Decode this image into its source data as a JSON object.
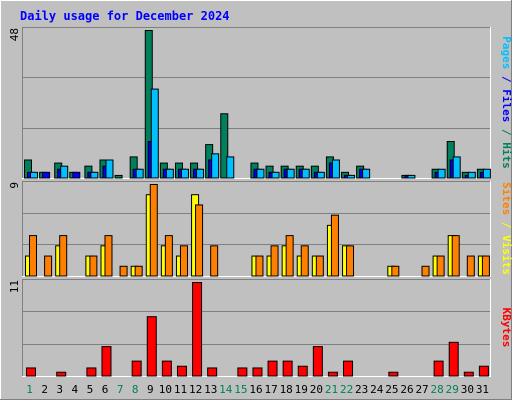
{
  "title": "Daily usage for December 2024",
  "colors": {
    "background": "#c0c0c0",
    "frame_dark": "#808080",
    "frame_light": "#ffffff",
    "gridline": "#808080",
    "title_text": "#0000ff",
    "hits": "#00805c",
    "files": "#0000ff",
    "pages": "#00c0ff",
    "visits": "#ff8000",
    "sites": "#ffff00",
    "kbytes": "#ff0000",
    "day_weekday": "#0000ff",
    "day_weekend": "#00805c"
  },
  "chart_data": [
    {
      "type": "bar",
      "panel": "hits-files-pages",
      "ylabel_max": "48",
      "ylim": [
        0,
        48
      ],
      "categories": [
        "1",
        "2",
        "3",
        "4",
        "5",
        "6",
        "7",
        "8",
        "9",
        "10",
        "11",
        "12",
        "13",
        "14",
        "15",
        "16",
        "17",
        "18",
        "19",
        "20",
        "21",
        "22",
        "23",
        "24",
        "25",
        "26",
        "27",
        "28",
        "29",
        "30",
        "31"
      ],
      "legend": {
        "pages": "Pages",
        "files": "Files",
        "hits": "Hits",
        "sep": " / "
      },
      "series": [
        {
          "name": "Hits",
          "values": [
            6,
            2,
            5,
            2,
            4,
            6,
            1,
            7,
            48,
            5,
            5,
            5,
            11,
            21,
            0,
            5,
            4,
            4,
            4,
            4,
            7,
            2,
            4,
            0,
            0,
            1,
            0,
            3,
            12,
            2,
            3
          ]
        },
        {
          "name": "Files",
          "values": [
            2,
            2,
            3,
            2,
            2,
            4,
            0,
            3,
            12,
            3,
            3,
            3,
            6,
            0,
            0,
            3,
            2,
            3,
            3,
            2,
            5,
            1,
            3,
            0,
            0,
            1,
            0,
            2,
            6,
            1,
            2
          ]
        },
        {
          "name": "Pages",
          "values": [
            2,
            0,
            4,
            0,
            2,
            6,
            0,
            3,
            29,
            3,
            3,
            3,
            8,
            7,
            0,
            3,
            2,
            3,
            3,
            2,
            6,
            1,
            3,
            0,
            0,
            1,
            0,
            3,
            7,
            2,
            3
          ]
        }
      ]
    },
    {
      "type": "bar",
      "panel": "visits-sites",
      "ylabel_max": "9",
      "ylim": [
        0,
        9
      ],
      "categories": [
        "1",
        "2",
        "3",
        "4",
        "5",
        "6",
        "7",
        "8",
        "9",
        "10",
        "11",
        "12",
        "13",
        "14",
        "15",
        "16",
        "17",
        "18",
        "19",
        "20",
        "21",
        "22",
        "23",
        "24",
        "25",
        "26",
        "27",
        "28",
        "29",
        "30",
        "31"
      ],
      "legend": {
        "sites": "Sites",
        "visits": "Visits",
        "sep": " / "
      },
      "series": [
        {
          "name": "Sites",
          "values": [
            2,
            0,
            3,
            0,
            2,
            3,
            0,
            1,
            8,
            3,
            2,
            8,
            0,
            0,
            0,
            2,
            2,
            3,
            2,
            2,
            5,
            3,
            0,
            0,
            1,
            0,
            0,
            2,
            4,
            0,
            2
          ]
        },
        {
          "name": "Visits",
          "values": [
            4,
            2,
            4,
            0,
            2,
            4,
            1,
            1,
            9,
            4,
            3,
            7,
            3,
            0,
            0,
            2,
            3,
            4,
            3,
            2,
            6,
            3,
            0,
            0,
            1,
            0,
            1,
            2,
            4,
            2,
            2
          ]
        }
      ]
    },
    {
      "type": "bar",
      "panel": "kbytes",
      "ylabel_max": "11",
      "ylim": [
        0,
        11
      ],
      "categories": [
        "1",
        "2",
        "3",
        "4",
        "5",
        "6",
        "7",
        "8",
        "9",
        "10",
        "11",
        "12",
        "13",
        "14",
        "15",
        "16",
        "17",
        "18",
        "19",
        "20",
        "21",
        "22",
        "23",
        "24",
        "25",
        "26",
        "27",
        "28",
        "29",
        "30",
        "31"
      ],
      "legend": {
        "kbytes": "KBytes"
      },
      "series": [
        {
          "name": "KBytes",
          "values": [
            1,
            0,
            0.5,
            0,
            1,
            3.5,
            0,
            1.8,
            7,
            1.8,
            1.2,
            11,
            1,
            0,
            1,
            1,
            1.8,
            1.8,
            1.2,
            3.5,
            0.5,
            1.8,
            0,
            0,
            0.5,
            0,
            0,
            1.8,
            4,
            0.5,
            1.2
          ]
        }
      ]
    }
  ],
  "day_labels": {
    "days": [
      "1",
      "2",
      "3",
      "4",
      "5",
      "6",
      "7",
      "8",
      "9",
      "10",
      "11",
      "12",
      "13",
      "14",
      "15",
      "16",
      "17",
      "18",
      "19",
      "20",
      "21",
      "22",
      "23",
      "24",
      "25",
      "26",
      "27",
      "28",
      "29",
      "30",
      "31"
    ],
    "weekend": [
      "1",
      "7",
      "8",
      "14",
      "15",
      "21",
      "22",
      "28",
      "29"
    ]
  }
}
